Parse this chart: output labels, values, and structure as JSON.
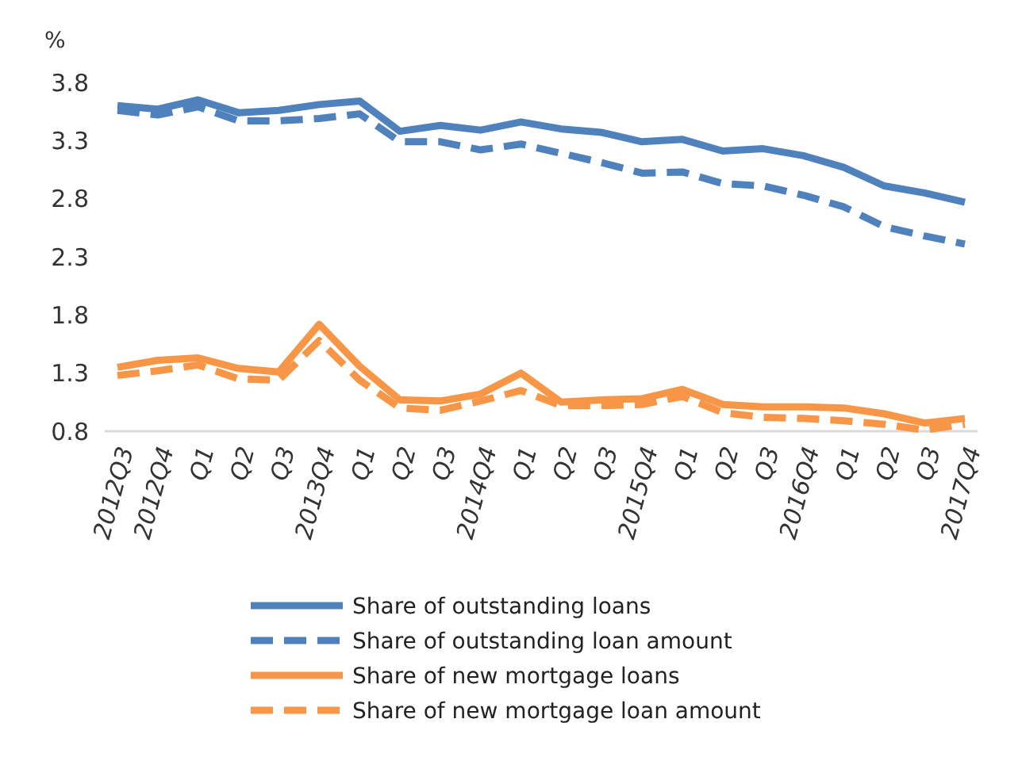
{
  "chart_data": {
    "type": "line",
    "ylabel": "%",
    "categories": [
      "2012Q3",
      "2012Q4",
      "Q1",
      "Q2",
      "Q3",
      "2013Q4",
      "Q1",
      "Q2",
      "Q3",
      "2014Q4",
      "Q1",
      "Q2",
      "Q3",
      "2015Q4",
      "Q1",
      "Q2",
      "Q3",
      "2016Q4",
      "Q1",
      "Q2",
      "Q3",
      "2017Q4"
    ],
    "ylim": [
      0.8,
      3.8
    ],
    "yticks": [
      0.8,
      1.3,
      1.8,
      2.3,
      2.8,
      3.3,
      3.8
    ],
    "grid": false,
    "legend": "bottom",
    "series": [
      {
        "name": "Share of outstanding loans",
        "color": "#4f81bd",
        "line_style": "solid",
        "values": [
          3.6,
          3.57,
          3.65,
          3.54,
          3.56,
          3.61,
          3.64,
          3.38,
          3.43,
          3.39,
          3.46,
          3.4,
          3.37,
          3.29,
          3.31,
          3.21,
          3.23,
          3.17,
          3.07,
          2.91,
          2.85,
          2.77
        ]
      },
      {
        "name": "Share of outstanding loan amount",
        "color": "#4f81bd",
        "line_style": "dashed",
        "values": [
          3.56,
          3.52,
          3.59,
          3.47,
          3.47,
          3.49,
          3.53,
          3.29,
          3.29,
          3.22,
          3.27,
          3.19,
          3.11,
          3.02,
          3.03,
          2.93,
          2.91,
          2.83,
          2.73,
          2.56,
          2.48,
          2.41
        ]
      },
      {
        "name": "Share of new mortgage loans",
        "color": "#f79646",
        "line_style": "solid",
        "values": [
          1.35,
          1.41,
          1.43,
          1.34,
          1.31,
          1.72,
          1.36,
          1.07,
          1.06,
          1.12,
          1.3,
          1.05,
          1.07,
          1.08,
          1.16,
          1.03,
          1.01,
          1.01,
          1.0,
          0.95,
          0.87,
          0.91
        ]
      },
      {
        "name": "Share of new mortgage loan amount",
        "color": "#f79646",
        "line_style": "dashed",
        "values": [
          1.28,
          1.32,
          1.37,
          1.25,
          1.24,
          1.58,
          1.24,
          1.0,
          0.98,
          1.06,
          1.15,
          1.02,
          1.02,
          1.03,
          1.1,
          0.96,
          0.92,
          0.91,
          0.89,
          0.86,
          0.81,
          0.86
        ]
      }
    ]
  }
}
